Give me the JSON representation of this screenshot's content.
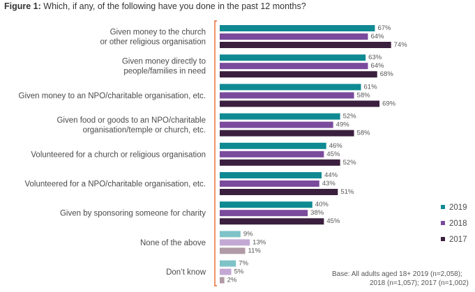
{
  "title": {
    "label": "Figure 1:",
    "text": "Which, if any, of the following have you done in the past 12 months?"
  },
  "chart_data": {
    "type": "bar",
    "orientation": "horizontal",
    "unit": "%",
    "xlim": [
      0,
      100
    ],
    "grid": false,
    "legend_position": "right",
    "categories": [
      [
        "Given money to the church",
        "or other religious organisation"
      ],
      [
        "Given money directly to",
        "people/families in need"
      ],
      [
        "Given money to an NPO/charitable organisation, etc."
      ],
      [
        "Given food or goods to an NPO/charitable",
        "organisation/temple or church, etc."
      ],
      [
        "Volunteered for a church or religious organisation"
      ],
      [
        "Volunteered for a NPO/charitable organisation, etc."
      ],
      [
        "Given by sponsoring someone for charity"
      ],
      [
        "None of the above"
      ],
      [
        "Don’t know"
      ]
    ],
    "series": [
      {
        "name": "2019",
        "color": "#0f8a93",
        "light_color": "#7fc3c8",
        "values": [
          67,
          63,
          61,
          52,
          46,
          44,
          40,
          9,
          7
        ]
      },
      {
        "name": "2018",
        "color": "#7a4b9c",
        "light_color": "#c3a8d4",
        "values": [
          64,
          64,
          58,
          49,
          45,
          43,
          38,
          13,
          5
        ]
      },
      {
        "name": "2017",
        "color": "#3b1f3e",
        "light_color": "#b09aa6",
        "values": [
          74,
          68,
          69,
          58,
          52,
          51,
          45,
          11,
          2
        ]
      }
    ],
    "muted_categories": [
      7,
      8
    ],
    "bracket_color": "#e8632b"
  },
  "footnote": {
    "line1": "Base:    All adults aged 18+ 2019 (n=2,058);",
    "line2": "2018 (n=1,057); 2017 (n=1,002)"
  }
}
